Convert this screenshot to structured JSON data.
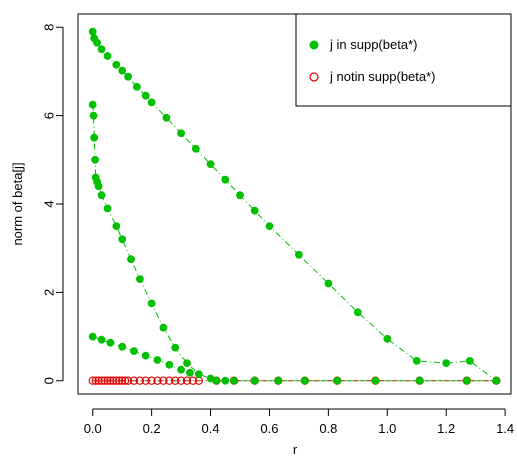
{
  "chart_data": {
    "type": "scatter",
    "title": "",
    "xlabel": "r",
    "ylabel": "norm of  beta[j]",
    "xlim": [
      -0.05,
      1.42
    ],
    "ylim": [
      -0.3,
      8.3
    ],
    "xticks": [
      "0.0",
      "0.2",
      "0.4",
      "0.6",
      "0.8",
      "1.0",
      "1.2",
      "1.4"
    ],
    "yticks": [
      "0",
      "2",
      "4",
      "6",
      "8"
    ],
    "grid": false,
    "legend_position": "top-right",
    "colors": {
      "in_support": "#00c000",
      "not_in_support": "#e00000",
      "line_in": "#00c000",
      "line_not": "#8b3a00"
    },
    "series": [
      {
        "name": "j in supp(beta*)",
        "marker": "filled-circle",
        "color": "#00c000",
        "curves": [
          {
            "x": [
              0.0,
              0.005,
              0.015,
              0.03,
              0.05,
              0.08,
              0.1,
              0.12,
              0.15,
              0.18,
              0.2,
              0.25,
              0.3,
              0.35,
              0.4,
              0.45,
              0.5,
              0.55,
              0.6,
              0.7,
              0.8,
              0.9,
              1.0,
              1.1,
              1.2,
              1.28,
              1.37
            ],
            "y": [
              7.9,
              7.75,
              7.65,
              7.5,
              7.35,
              7.15,
              7.02,
              6.88,
              6.65,
              6.45,
              6.3,
              5.95,
              5.6,
              5.25,
              4.9,
              4.55,
              4.2,
              3.85,
              3.5,
              2.85,
              2.2,
              1.55,
              0.95,
              0.45,
              0.4,
              0.45,
              0.0
            ]
          },
          {
            "x": [
              0.0,
              0.003,
              0.005,
              0.008,
              0.01,
              0.015,
              0.02,
              0.03,
              0.05,
              0.08,
              0.1,
              0.13,
              0.16,
              0.2,
              0.24,
              0.28,
              0.32,
              0.36,
              0.4,
              0.45
            ],
            "y": [
              6.25,
              6.0,
              5.5,
              5.0,
              4.6,
              4.5,
              4.4,
              4.2,
              3.9,
              3.5,
              3.2,
              2.75,
              2.3,
              1.75,
              1.2,
              0.75,
              0.4,
              0.15,
              0.05,
              0.0
            ]
          },
          {
            "x": [
              0.0,
              0.03,
              0.06,
              0.1,
              0.14,
              0.18,
              0.22,
              0.26,
              0.3,
              0.33
            ],
            "y": [
              1.0,
              0.93,
              0.86,
              0.77,
              0.67,
              0.57,
              0.47,
              0.36,
              0.25,
              0.18
            ]
          },
          {
            "x": [
              0.42,
              0.48,
              0.55,
              0.63,
              0.72,
              0.83,
              0.96,
              1.11,
              1.27,
              1.37
            ],
            "y": [
              0.0,
              0.0,
              0.0,
              0.0,
              0.0,
              0.0,
              0.0,
              0.0,
              0.0,
              0.0
            ]
          }
        ]
      },
      {
        "name": "j notin supp(beta*)",
        "marker": "open-circle",
        "color": "#e00000",
        "curves": [
          {
            "x": [
              0.0,
              0.01,
              0.02,
              0.03,
              0.04,
              0.05,
              0.06,
              0.07,
              0.08,
              0.09,
              0.1,
              0.11,
              0.12,
              0.14,
              0.16,
              0.18,
              0.2,
              0.22,
              0.24,
              0.26,
              0.28,
              0.3,
              0.32,
              0.34,
              0.36,
              0.42,
              0.48,
              0.55,
              0.63,
              0.72,
              0.83,
              0.96,
              1.11,
              1.27,
              1.37
            ],
            "y": [
              0.0,
              0.0,
              0.0,
              0.0,
              0.0,
              0.0,
              0.0,
              0.0,
              0.0,
              0.0,
              0.0,
              0.0,
              0.0,
              0.0,
              0.0,
              0.0,
              0.0,
              0.0,
              0.0,
              0.0,
              0.0,
              0.0,
              0.0,
              0.0,
              0.0,
              0.0,
              0.0,
              0.0,
              0.0,
              0.0,
              0.0,
              0.0,
              0.0,
              0.0,
              0.0
            ]
          }
        ]
      }
    ]
  }
}
